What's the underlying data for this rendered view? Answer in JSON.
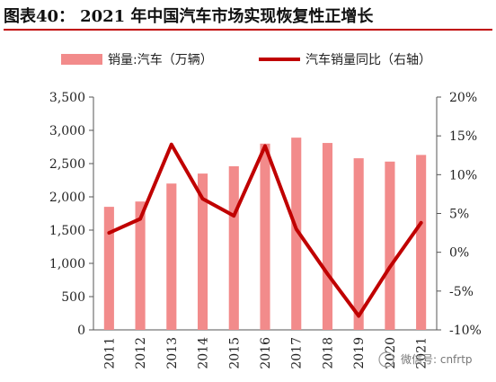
{
  "header": {
    "figure_number": "图表40：",
    "title": "2021 年中国汽车市场实现恢复性正增长"
  },
  "watermark": {
    "text": "微信号: cnfrtp"
  },
  "colors": {
    "bar": "#f28b8b",
    "line": "#c00000",
    "title_rule": "#c00000"
  },
  "chart_data": {
    "type": "bar",
    "categories": [
      "2011",
      "2012",
      "2013",
      "2014",
      "2015",
      "2016",
      "2017",
      "2018",
      "2019",
      "2020",
      "2021"
    ],
    "series": [
      {
        "name": "销量:汽车（万辆）",
        "type": "bar",
        "axis": "left",
        "values": [
          1850,
          1930,
          2200,
          2350,
          2460,
          2800,
          2890,
          2810,
          2580,
          2530,
          2630
        ]
      },
      {
        "name": "汽车销量同比（右轴）",
        "type": "line",
        "axis": "right",
        "values": [
          2.5,
          4.3,
          13.9,
          6.9,
          4.7,
          13.7,
          3.0,
          -2.8,
          -8.2,
          -1.9,
          3.8
        ]
      }
    ],
    "y_left": {
      "ylim": [
        0,
        3500
      ],
      "ticks": [
        0,
        500,
        1000,
        1500,
        2000,
        2500,
        3000,
        3500
      ],
      "tick_labels": [
        "0",
        "500",
        "1,000",
        "1,500",
        "2,000",
        "2,500",
        "3,000",
        "3,500"
      ]
    },
    "y_right": {
      "ylim": [
        -10,
        20
      ],
      "ticks": [
        -10,
        -5,
        0,
        5,
        10,
        15,
        20
      ],
      "tick_labels": [
        "-10%",
        "-5%",
        "0%",
        "5%",
        "10%",
        "15%",
        "20%"
      ]
    },
    "legend_position": "top",
    "grid": false,
    "x_tick_rotation": "vertical"
  }
}
